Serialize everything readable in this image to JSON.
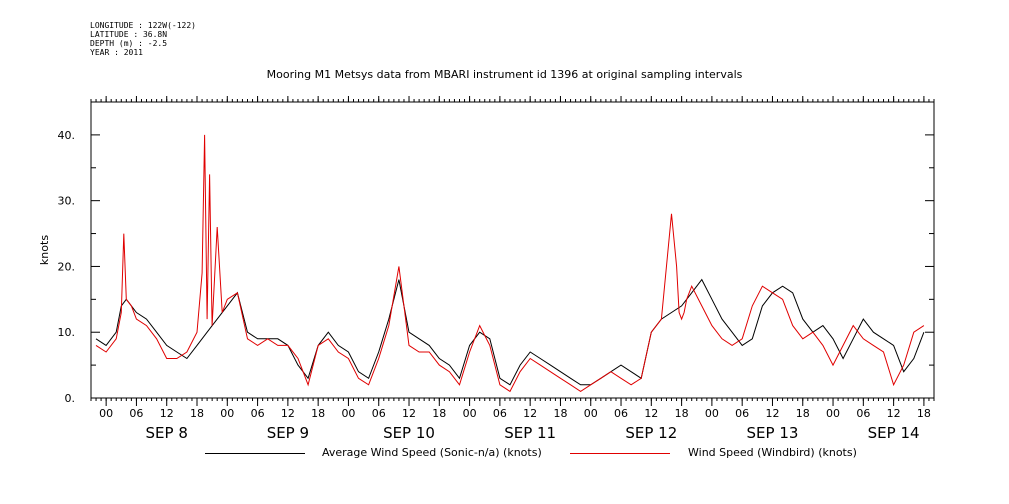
{
  "header": {
    "meta": [
      "LONGITUDE : 122W(-122)",
      "LATITUDE : 36.8N",
      "DEPTH (m) : -2.5",
      "YEAR : 2011"
    ],
    "title": "Mooring M1 Metsys data from MBARI instrument id 1396 at original sampling intervals"
  },
  "colors": {
    "avg": "#000000",
    "windbird": "#e00000",
    "axis": "#000000"
  },
  "chart_data": {
    "type": "line",
    "title": "Mooring M1 Metsys data from MBARI instrument id 1396 at original sampling intervals",
    "ylabel": "knots",
    "xlabel": "",
    "ylim": [
      0,
      45
    ],
    "xlim_hours": [
      -3,
      164
    ],
    "y_ticks": [
      "0.",
      "10.",
      "20.",
      "30.",
      "40."
    ],
    "y_tick_values": [
      0,
      10,
      20,
      30,
      40
    ],
    "hour_ticks": [
      "00",
      "06",
      "12",
      "18",
      "00",
      "06",
      "12",
      "18",
      "00",
      "06",
      "12",
      "18",
      "00",
      "06",
      "12",
      "18",
      "00",
      "06",
      "12",
      "18",
      "00",
      "06",
      "12",
      "18",
      "00",
      "06",
      "12",
      "18"
    ],
    "day_labels": [
      "SEP 8",
      "SEP 9",
      "SEP 10",
      "SEP 11",
      "SEP 12",
      "SEP 13",
      "SEP 14"
    ],
    "grid": false,
    "legend_position": "bottom",
    "series": [
      {
        "name": "Average Wind Speed (Sonic-n/a) (knots)",
        "color": "#000000",
        "x": [
          -2,
          0,
          2,
          3,
          4,
          5,
          6,
          8,
          10,
          12,
          14,
          16,
          18,
          20,
          22,
          24,
          26,
          28,
          30,
          32,
          34,
          36,
          38,
          40,
          42,
          44,
          46,
          48,
          50,
          52,
          54,
          56,
          58,
          60,
          62,
          64,
          66,
          68,
          70,
          72,
          74,
          76,
          78,
          80,
          82,
          84,
          86,
          88,
          90,
          92,
          94,
          96,
          98,
          100,
          102,
          104,
          106,
          108,
          110,
          112,
          114,
          116,
          118,
          120,
          122,
          124,
          126,
          128,
          130,
          132,
          134,
          136,
          138,
          140,
          142,
          144,
          146,
          148,
          150,
          152,
          154,
          156,
          158,
          160,
          162
        ],
        "y": [
          9,
          8,
          10,
          14,
          15,
          14,
          13,
          12,
          10,
          8,
          7,
          6,
          8,
          10,
          12,
          14,
          16,
          10,
          9,
          9,
          9,
          8,
          5,
          3,
          8,
          10,
          8,
          7,
          4,
          3,
          7,
          12,
          18,
          10,
          9,
          8,
          6,
          5,
          3,
          8,
          10,
          9,
          3,
          2,
          5,
          7,
          6,
          5,
          4,
          3,
          2,
          2,
          3,
          4,
          5,
          4,
          3,
          10,
          12,
          13,
          14,
          16,
          18,
          15,
          12,
          10,
          8,
          9,
          14,
          16,
          17,
          16,
          12,
          10,
          11,
          9,
          6,
          9,
          12,
          10,
          9,
          8,
          4,
          6,
          10
        ]
      },
      {
        "name": "Wind Speed (Windbird) (knots)",
        "color": "#e00000",
        "x": [
          -2,
          0,
          2,
          3,
          3.5,
          4,
          5,
          6,
          8,
          10,
          12,
          14,
          16,
          18,
          19,
          19.5,
          20,
          20.5,
          21,
          22,
          23,
          24,
          26,
          28,
          30,
          32,
          34,
          36,
          38,
          40,
          42,
          44,
          46,
          48,
          50,
          52,
          54,
          56,
          58,
          60,
          62,
          64,
          66,
          68,
          70,
          72,
          74,
          76,
          78,
          80,
          82,
          84,
          86,
          88,
          90,
          92,
          94,
          96,
          98,
          100,
          102,
          104,
          106,
          108,
          110,
          112,
          113,
          113.5,
          114,
          114.5,
          115,
          116,
          118,
          120,
          122,
          124,
          126,
          128,
          130,
          132,
          134,
          136,
          138,
          140,
          142,
          144,
          146,
          148,
          150,
          152,
          154,
          156,
          158,
          160,
          162
        ],
        "y": [
          8,
          7,
          9,
          13,
          25,
          15,
          14,
          12,
          11,
          9,
          6,
          6,
          7,
          10,
          19,
          40,
          12,
          34,
          11,
          26,
          13,
          15,
          16,
          9,
          8,
          9,
          8,
          8,
          6,
          2,
          8,
          9,
          7,
          6,
          3,
          2,
          6,
          11,
          20,
          8,
          7,
          7,
          5,
          4,
          2,
          7,
          11,
          8,
          2,
          1,
          4,
          6,
          5,
          4,
          3,
          2,
          1,
          2,
          3,
          4,
          3,
          2,
          3,
          10,
          12,
          28,
          20,
          13,
          12,
          13,
          15,
          17,
          14,
          11,
          9,
          8,
          9,
          14,
          17,
          16,
          15,
          11,
          9,
          10,
          8,
          5,
          8,
          11,
          9,
          8,
          7,
          2,
          5,
          10,
          11
        ]
      }
    ]
  },
  "legend": {
    "avg_label": "Average Wind Speed (Sonic-n/a) (knots)",
    "windbird_label": "Wind Speed (Windbird) (knots)"
  }
}
